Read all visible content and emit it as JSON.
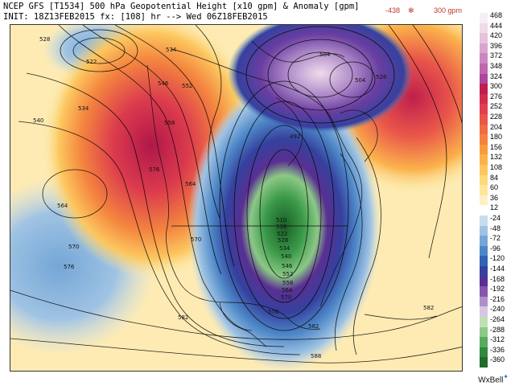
{
  "header": {
    "title": "NCEP GFS [T1534] 500 hPa Geopotential Height [x10 gpm] & Anomaly [gpm]",
    "init": "INIT: 18Z13FEB2015 fx: [108] hr --> Wed 06Z18FEB2015",
    "min_anomaly": "-438",
    "max_anomaly": "300 gpm",
    "extrema_sep": "✻"
  },
  "colors": {
    "ocean_blue": "#8fb8dd",
    "land_white": "#ffffff",
    "strong_positive": "#c01f4d",
    "strong_negative": "#1f6b2a",
    "purple_high": "#6a3ea1",
    "coast": "#000000"
  },
  "contour_labels": [
    "528",
    "522",
    "534",
    "534",
    "540",
    "546",
    "552",
    "558",
    "576",
    "564",
    "564",
    "570",
    "576",
    "582",
    "588",
    "570",
    "582",
    "504",
    "492",
    "510",
    "516",
    "522",
    "528",
    "534",
    "540",
    "546",
    "552",
    "558",
    "564",
    "570",
    "576",
    "504",
    "528",
    "582",
    "588"
  ],
  "legend": {
    "labels": [
      "468",
      "444",
      "420",
      "396",
      "372",
      "348",
      "324",
      "300",
      "276",
      "252",
      "228",
      "204",
      "180",
      "156",
      "132",
      "108",
      "84",
      "60",
      "36",
      "12",
      "-24",
      "-48",
      "-72",
      "-96",
      "-120",
      "-144",
      "-168",
      "-192",
      "-216",
      "-240",
      "-264",
      "-288",
      "-312",
      "-336",
      "-360"
    ],
    "colors": [
      "#f7eef5",
      "#efdbeb",
      "#e5c2dd",
      "#d9a5cf",
      "#cc86bf",
      "#be66ae",
      "#ae469c",
      "#c01f4d",
      "#d22d4f",
      "#e03f4f",
      "#e9564a",
      "#f06c43",
      "#f5833d",
      "#f89b3f",
      "#fbb24b",
      "#fcc75f",
      "#fdd97a",
      "#fde69c",
      "#fdf1c4",
      "#ffffff",
      "#c7dcee",
      "#9fc3e3",
      "#74a6d6",
      "#4d87c7",
      "#2f64b3",
      "#35419e",
      "#5a2f92",
      "#8555ad",
      "#b18dca",
      "#d8c7e4",
      "#bfe0b3",
      "#8cc886",
      "#58aa5d",
      "#2f8a3f",
      "#1f6b2a"
    ]
  },
  "credit": "WxBell",
  "credit_mark": "✦"
}
